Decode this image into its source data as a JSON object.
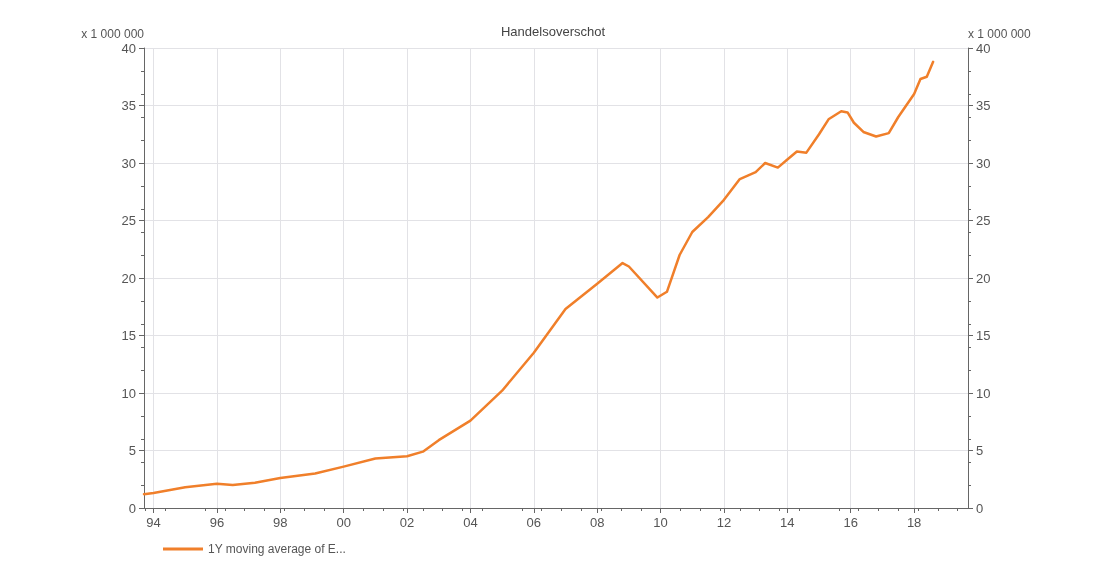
{
  "chart_data": {
    "type": "line",
    "title": "Handelsoverschot",
    "ylabel": "x 1 000 000",
    "y2label": "x 1 000 000",
    "xlim": [
      1993.7,
      2019.7
    ],
    "xticks": [
      {
        "value": 1994,
        "label": "94"
      },
      {
        "value": 1996,
        "label": "96"
      },
      {
        "value": 1998,
        "label": "98"
      },
      {
        "value": 2000,
        "label": "00"
      },
      {
        "value": 2002,
        "label": "02"
      },
      {
        "value": 2004,
        "label": "04"
      },
      {
        "value": 2006,
        "label": "06"
      },
      {
        "value": 2008,
        "label": "08"
      },
      {
        "value": 2010,
        "label": "10"
      },
      {
        "value": 2012,
        "label": "12"
      },
      {
        "value": 2014,
        "label": "14"
      },
      {
        "value": 2016,
        "label": "16"
      },
      {
        "value": 2018,
        "label": "18"
      }
    ],
    "ylim": [
      0,
      40
    ],
    "yticks": [
      0,
      5,
      10,
      15,
      20,
      25,
      30,
      35,
      40
    ],
    "y2lim": [
      0,
      40
    ],
    "y2ticks": [
      0,
      5,
      10,
      15,
      20,
      25,
      30,
      35,
      40
    ],
    "grid": true,
    "legend": "bottom left",
    "marker": "none",
    "line_style": "solid",
    "series": [
      {
        "name": "1Y moving average of E...",
        "color": "#f07f2a",
        "x": [
          1993.7,
          1994,
          1995,
          1996,
          1996.5,
          1997.2,
          1998,
          1999.1,
          2000,
          2001,
          2002,
          2002.5,
          2003,
          2004,
          2005,
          2006,
          2007,
          2008,
          2008.8,
          2009,
          2009.9,
          2010.2,
          2010.6,
          2011,
          2011.5,
          2012,
          2012.5,
          2013,
          2013.3,
          2013.7,
          2014,
          2014.3,
          2014.6,
          2015,
          2015.3,
          2015.7,
          2015.9,
          2016.1,
          2016.4,
          2016.8,
          2017.2,
          2017.5,
          2018,
          2018.2,
          2018.4,
          2018.6
        ],
        "values": [
          1.2,
          1.3,
          1.8,
          2.1,
          2.0,
          2.2,
          2.6,
          3.0,
          3.6,
          4.3,
          4.5,
          4.9,
          5.9,
          7.6,
          10.2,
          13.5,
          17.3,
          19.5,
          21.3,
          21.0,
          18.3,
          18.8,
          22.0,
          24.0,
          25.3,
          26.8,
          28.6,
          29.2,
          30.0,
          29.6,
          30.3,
          31.0,
          30.9,
          32.5,
          33.8,
          34.5,
          34.4,
          33.5,
          32.7,
          32.3,
          32.6,
          34.0,
          36.0,
          37.3,
          37.5,
          38.8
        ]
      }
    ]
  }
}
